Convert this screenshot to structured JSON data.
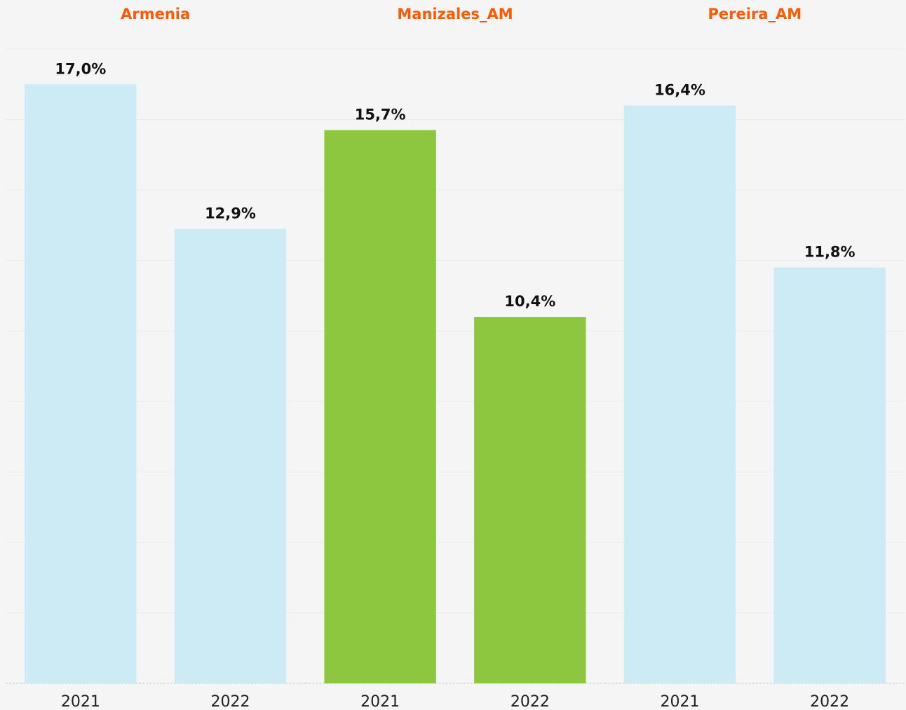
{
  "chart_data": [
    {
      "type": "bar",
      "title": "Armenia",
      "categories": [
        "2021",
        "2022"
      ],
      "values": [
        17.0,
        12.9
      ],
      "value_labels": [
        "17,0%",
        "12,9%"
      ],
      "color": "#cdebf5",
      "ylim": [
        0,
        18
      ],
      "yticks": [
        0,
        2,
        4,
        6,
        8,
        10,
        12,
        14,
        16,
        18
      ],
      "grid": true
    },
    {
      "type": "bar",
      "title": "Manizales_AM",
      "categories": [
        "2021",
        "2022"
      ],
      "values": [
        15.7,
        10.4
      ],
      "value_labels": [
        "15,7%",
        "10,4%"
      ],
      "color": "#8dc63f",
      "ylim": [
        0,
        18
      ],
      "yticks": [
        0,
        2,
        4,
        6,
        8,
        10,
        12,
        14,
        16,
        18
      ],
      "grid": true
    },
    {
      "type": "bar",
      "title": "Pereira_AM",
      "categories": [
        "2021",
        "2022"
      ],
      "values": [
        16.4,
        11.8
      ],
      "value_labels": [
        "16,4%",
        "11,8%"
      ],
      "color": "#cdebf5",
      "ylim": [
        0,
        18
      ],
      "yticks": [
        0,
        2,
        4,
        6,
        8,
        10,
        12,
        14,
        16,
        18
      ],
      "grid": true
    }
  ]
}
